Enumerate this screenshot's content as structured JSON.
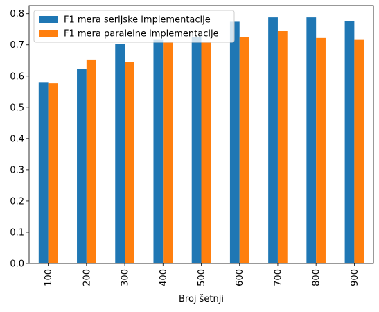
{
  "chart_data": {
    "type": "bar",
    "categories": [
      "100",
      "200",
      "300",
      "400",
      "500",
      "600",
      "700",
      "800",
      "900"
    ],
    "series": [
      {
        "name": "F1 mera serijske implementacije",
        "color": "#1f77b4",
        "values": [
          0.581,
          0.623,
          0.702,
          0.718,
          0.726,
          0.774,
          0.788,
          0.788,
          0.776
        ]
      },
      {
        "name": "F1 mera paralelne implementacije",
        "color": "#ff7f0e",
        "values": [
          0.577,
          0.653,
          0.646,
          0.707,
          0.707,
          0.724,
          0.745,
          0.722,
          0.718
        ]
      }
    ],
    "xlabel": "Broj šetnji",
    "ylabel": "",
    "ylim": [
      0,
      0.826
    ],
    "yticks": [
      "0.0",
      "0.1",
      "0.2",
      "0.3",
      "0.4",
      "0.5",
      "0.6",
      "0.7",
      "0.8"
    ],
    "grid": false,
    "legend": "top-left"
  }
}
